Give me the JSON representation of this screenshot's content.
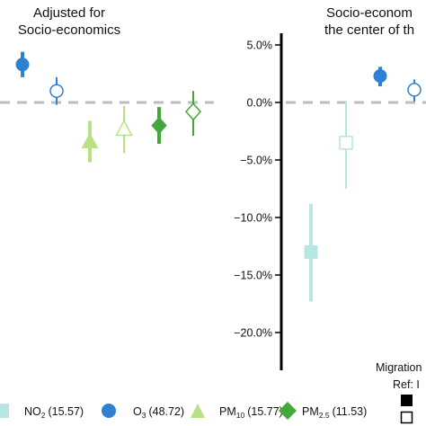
{
  "colors": {
    "no2": "#b7e6e3",
    "o3": "#2f7fd2",
    "pm10": "#b6e285",
    "pm25": "#43a83a",
    "zero_line": "#bdbdbd",
    "axis": "#000000",
    "text": "#111111"
  },
  "chart_data": [
    {
      "type": "scatter",
      "panel": "left",
      "title_lines": [
        "Adjusted for",
        "Socio-economics"
      ],
      "ylim": [
        -22.5,
        6.5
      ],
      "points": [
        {
          "pollutant": "O3",
          "filled": true,
          "shape": "circle",
          "y": 3.3,
          "lo": 2.2,
          "hi": 4.4
        },
        {
          "pollutant": "O3",
          "filled": false,
          "shape": "circle",
          "y": 1.0,
          "lo": -0.2,
          "hi": 2.2
        },
        {
          "pollutant": "PM10",
          "filled": true,
          "shape": "triangle",
          "y": -3.4,
          "lo": -5.2,
          "hi": -1.6
        },
        {
          "pollutant": "PM10",
          "filled": false,
          "shape": "triangle",
          "y": -2.3,
          "lo": -4.4,
          "hi": -0.3
        },
        {
          "pollutant": "PM2.5",
          "filled": true,
          "shape": "diamond",
          "y": -2.0,
          "lo": -3.6,
          "hi": -0.4
        },
        {
          "pollutant": "PM2.5",
          "filled": false,
          "shape": "diamond",
          "y": -0.8,
          "lo": -2.9,
          "hi": 1.0
        }
      ]
    },
    {
      "type": "scatter",
      "panel": "right",
      "title_lines": [
        "Socio-econom",
        "the center of th"
      ],
      "ylim": [
        -22.5,
        6.5
      ],
      "yticks": [
        5,
        0,
        -5,
        -10,
        -15,
        -20
      ],
      "yticklabels": [
        "5.0%",
        "0.0%",
        "−5.0%",
        "−10.0%",
        "−15.0%",
        "−20.0%"
      ],
      "points": [
        {
          "pollutant": "NO2",
          "filled": true,
          "shape": "square",
          "y": -13.0,
          "lo": -17.3,
          "hi": -8.8
        },
        {
          "pollutant": "NO2",
          "filled": false,
          "shape": "square",
          "y": -3.5,
          "lo": -7.5,
          "hi": 0.1
        },
        {
          "pollutant": "O3",
          "filled": true,
          "shape": "circle",
          "y": 2.3,
          "lo": 1.4,
          "hi": 3.1
        },
        {
          "pollutant": "O3",
          "filled": false,
          "shape": "circle",
          "y": 1.1,
          "lo": 0.1,
          "hi": 2.0
        }
      ]
    }
  ],
  "legend": {
    "items": [
      {
        "key": "no2",
        "shape": "square",
        "label": "NO",
        "sub": "2",
        "value": "(15.57)"
      },
      {
        "key": "o3",
        "shape": "circle",
        "label": "O",
        "sub": "3",
        "value": "(48.72)"
      },
      {
        "key": "pm10",
        "shape": "triangle",
        "label": "PM",
        "sub": "10",
        "value": "(15.77)"
      },
      {
        "key": "pm25",
        "shape": "diamond",
        "label": "PM",
        "sub": "2.5",
        "value": "(11.53)"
      }
    ]
  },
  "migration_legend": {
    "title": "Migration",
    "ref_label": "Ref: I"
  }
}
